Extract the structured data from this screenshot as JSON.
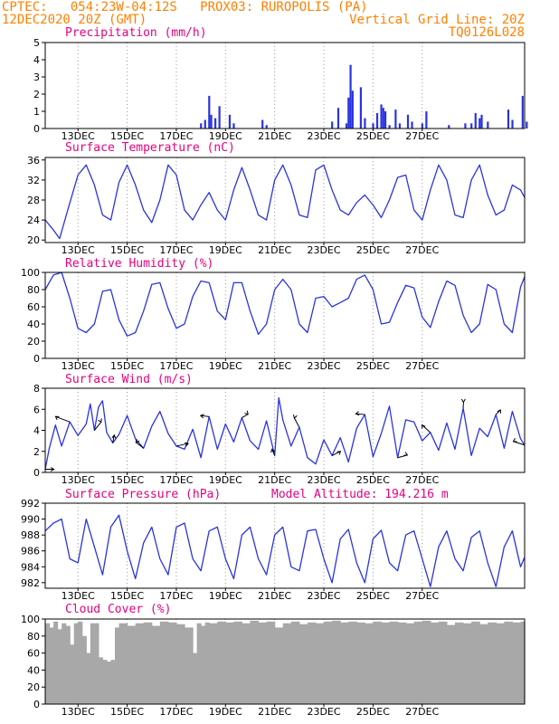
{
  "header": {
    "line1_left": "CPTEC:   054:23W-04:12S   PROX03: RUROPOLIS (PA)",
    "line2_left": "12DEC2020 20Z (GMT)",
    "line2_right": "Vertical Grid Line: 20Z",
    "line3_right": "TQ0126L028"
  },
  "colors": {
    "header": "#ff8000",
    "title": "#e6007e",
    "series": "#2a34e0",
    "cloud": "#a8a8a8",
    "grid": "#999999",
    "axis": "#000000"
  },
  "x_tick_labels": [
    "13DEC",
    "15DEC",
    "17DEC",
    "19DEC",
    "21DEC",
    "23DEC",
    "25DEC",
    "27DEC"
  ],
  "chart_data": [
    {
      "id": "precip",
      "type": "bar",
      "title": "Precipitation (mm/h)",
      "ylim": [
        0,
        5
      ],
      "yticks": [
        0,
        1,
        2,
        3,
        4,
        5
      ],
      "x_hours_from_start": [
        76,
        78,
        80,
        81,
        83,
        85,
        90,
        92,
        106,
        108,
        140,
        143,
        147,
        148,
        149,
        150,
        154,
        156,
        160,
        162,
        164,
        165,
        166,
        168,
        171,
        173,
        177,
        179,
        184,
        186,
        197,
        205,
        208,
        210,
        212,
        213,
        216,
        226,
        228,
        233,
        235
      ],
      "values": [
        0.3,
        0.5,
        1.9,
        0.8,
        0.6,
        1.3,
        0.8,
        0.3,
        0.5,
        0.2,
        0.4,
        1.2,
        0.3,
        1.8,
        3.7,
        2.2,
        2.4,
        0.6,
        0.3,
        0.9,
        1.4,
        1.2,
        1.0,
        0.2,
        1.1,
        0.3,
        0.8,
        0.4,
        0.3,
        1.0,
        0.2,
        0.3,
        0.3,
        0.9,
        0.6,
        0.8,
        0.4,
        1.1,
        0.5,
        1.9,
        0.4
      ]
    },
    {
      "id": "temp",
      "type": "line",
      "title": "Surface Temperature (nC)",
      "ylim": [
        19.5,
        36.5
      ],
      "yticks": [
        20,
        24,
        28,
        32,
        36
      ],
      "x_hours_from_start": [
        0,
        4,
        7,
        11,
        16,
        20,
        24,
        28,
        32,
        36,
        40,
        44,
        48,
        52,
        56,
        60,
        64,
        68,
        72,
        76,
        80,
        84,
        88,
        92,
        96,
        100,
        104,
        108,
        112,
        116,
        120,
        124,
        128,
        132,
        136,
        140,
        144,
        148,
        152,
        156,
        160,
        164,
        168,
        172,
        176,
        180,
        184,
        188,
        192,
        196,
        200,
        204,
        208,
        212,
        216,
        220,
        224,
        228,
        232,
        234
      ],
      "values": [
        24,
        22,
        20.3,
        26,
        33,
        35,
        31,
        25,
        24,
        31.5,
        35,
        31,
        26,
        23.5,
        28,
        35,
        33,
        26,
        24,
        27,
        29.5,
        26,
        24,
        30,
        34.5,
        30,
        25,
        24,
        32,
        35,
        31,
        25,
        24.5,
        34,
        35,
        30,
        26,
        25,
        27.5,
        29,
        27,
        24.5,
        28,
        32.5,
        33,
        26,
        24,
        30,
        35,
        32,
        25,
        24.5,
        32,
        35,
        29,
        25,
        26,
        31,
        30,
        28.5
      ]
    },
    {
      "id": "rh",
      "type": "line",
      "title": "Relative Humidity (%)",
      "ylim": [
        0,
        100
      ],
      "yticks": [
        0,
        20,
        40,
        60,
        80,
        100
      ],
      "x_hours_from_start": [
        0,
        4,
        8,
        12,
        16,
        20,
        24,
        28,
        32,
        36,
        40,
        44,
        48,
        52,
        56,
        60,
        64,
        68,
        72,
        76,
        80,
        84,
        88,
        92,
        96,
        100,
        104,
        108,
        112,
        116,
        120,
        124,
        128,
        132,
        136,
        140,
        144,
        148,
        152,
        156,
        160,
        164,
        168,
        172,
        176,
        180,
        184,
        188,
        192,
        196,
        200,
        204,
        208,
        212,
        216,
        220,
        224,
        228,
        232,
        234
      ],
      "values": [
        80,
        97,
        100,
        70,
        35,
        30,
        40,
        78,
        80,
        45,
        26,
        30,
        55,
        86,
        88,
        58,
        35,
        40,
        72,
        90,
        88,
        55,
        45,
        88,
        88,
        55,
        28,
        40,
        80,
        92,
        80,
        40,
        30,
        70,
        72,
        60,
        65,
        70,
        92,
        97,
        80,
        40,
        42,
        65,
        85,
        82,
        48,
        36,
        66,
        90,
        85,
        50,
        30,
        40,
        86,
        80,
        40,
        30,
        83,
        95
      ]
    },
    {
      "id": "wind",
      "type": "line",
      "title": "Surface Wind (m/s)",
      "ylim": [
        0,
        8
      ],
      "yticks": [
        0,
        2,
        4,
        6,
        8
      ],
      "wind_arrows_shown": true,
      "x_hours_from_start": [
        0,
        2,
        5,
        8,
        12,
        16,
        20,
        22,
        24,
        26,
        28,
        30,
        33,
        36,
        40,
        44,
        48,
        52,
        56,
        60,
        64,
        68,
        72,
        76,
        80,
        84,
        88,
        92,
        96,
        100,
        104,
        108,
        112,
        114,
        116,
        120,
        124,
        128,
        132,
        136,
        140,
        144,
        148,
        152,
        156,
        160,
        164,
        168,
        172,
        176,
        180,
        184,
        188,
        192,
        196,
        200,
        204,
        208,
        212,
        216,
        220,
        224,
        228,
        232,
        234
      ],
      "values": [
        0.3,
        2.3,
        4.5,
        2.5,
        4.8,
        3.5,
        4.6,
        6.5,
        4.0,
        6.2,
        6.8,
        3.8,
        2.8,
        3.6,
        5.4,
        3.2,
        2.3,
        4.4,
        5.8,
        3.7,
        2.5,
        2.2,
        4.1,
        1.4,
        5.3,
        2.2,
        4.6,
        2.9,
        5.2,
        3.0,
        2.2,
        4.9,
        1.6,
        7.1,
        5.0,
        2.5,
        4.3,
        1.4,
        0.8,
        3.1,
        1.6,
        3.3,
        1.0,
        4.2,
        5.5,
        1.5,
        3.7,
        6.3,
        1.4,
        5.0,
        4.8,
        3.0,
        3.8,
        2.1,
        4.7,
        2.2,
        6.1,
        1.6,
        4.2,
        3.4,
        5.5,
        2.3,
        5.8,
        3.2,
        2.6
      ]
    },
    {
      "id": "pressure",
      "type": "line",
      "title": "Surface Pressure (hPa)",
      "annotation": "Model Altitude: 194.216 m",
      "ylim": [
        981.3,
        992
      ],
      "yticks": [
        982,
        984,
        986,
        988,
        990,
        992
      ],
      "x_hours_from_start": [
        0,
        4,
        8,
        12,
        16,
        20,
        24,
        28,
        32,
        36,
        40,
        44,
        48,
        52,
        56,
        60,
        64,
        68,
        72,
        76,
        80,
        84,
        88,
        92,
        96,
        100,
        104,
        108,
        112,
        116,
        120,
        124,
        128,
        132,
        136,
        140,
        144,
        148,
        152,
        156,
        160,
        164,
        168,
        172,
        176,
        180,
        184,
        188,
        192,
        196,
        200,
        204,
        208,
        212,
        216,
        220,
        224,
        228,
        232,
        234
      ],
      "values": [
        988.5,
        989.5,
        990,
        985,
        984.5,
        990,
        986.5,
        983,
        989,
        990.5,
        986,
        982.5,
        987,
        989,
        985,
        983,
        989,
        989.5,
        985,
        983.5,
        988.5,
        989,
        985,
        982.5,
        988,
        989,
        985,
        983,
        988,
        989,
        984,
        983.5,
        988.5,
        988.7,
        985,
        982,
        987.5,
        988.7,
        984.5,
        982,
        987.5,
        988.6,
        984.5,
        983.5,
        988,
        988.5,
        985,
        981.5,
        986.5,
        988.5,
        985,
        983.5,
        987.7,
        988.5,
        984.5,
        981.5,
        986.5,
        988.5,
        984,
        985.2
      ]
    },
    {
      "id": "cloud",
      "type": "area",
      "title": "Cloud Cover (%)",
      "ylim": [
        0,
        100
      ],
      "yticks": [
        0,
        20,
        40,
        60,
        80,
        100
      ],
      "x_hours_from_start": [
        0,
        2,
        4,
        6,
        8,
        10,
        12,
        14,
        16,
        18,
        20,
        22,
        24,
        26,
        28,
        30,
        32,
        34,
        36,
        40,
        44,
        48,
        52,
        56,
        60,
        64,
        68,
        72,
        74,
        76,
        78,
        80,
        84,
        88,
        92,
        96,
        100,
        104,
        108,
        112,
        116,
        120,
        124,
        128,
        132,
        136,
        140,
        144,
        148,
        152,
        156,
        160,
        164,
        168,
        172,
        176,
        180,
        184,
        188,
        192,
        196,
        200,
        204,
        208,
        212,
        216,
        220,
        224,
        228,
        232,
        234
      ],
      "values": [
        95,
        90,
        97,
        88,
        95,
        92,
        70,
        95,
        97,
        80,
        60,
        95,
        95,
        55,
        52,
        50,
        52,
        90,
        95,
        92,
        95,
        96,
        92,
        97,
        96,
        94,
        90,
        60,
        95,
        92,
        96,
        95,
        97,
        96,
        97,
        95,
        98,
        96,
        97,
        90,
        95,
        97,
        94,
        96,
        95,
        97,
        98,
        96,
        97,
        96,
        95,
        97,
        96,
        97,
        96,
        95,
        97,
        98,
        96,
        97,
        93,
        96,
        95,
        97,
        94,
        96,
        95,
        97,
        96,
        97,
        96
      ]
    }
  ]
}
